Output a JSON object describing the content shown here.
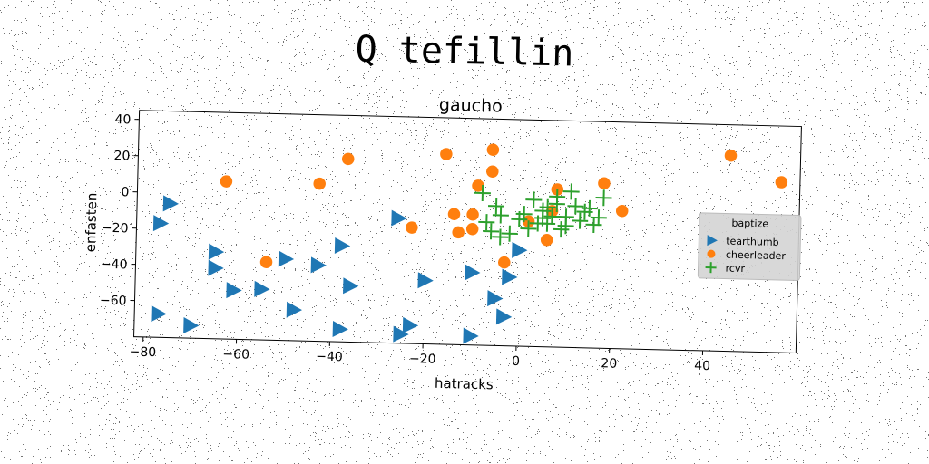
{
  "suptitle": "Q tefillin",
  "chart_data": {
    "type": "scatter",
    "title": "gaucho",
    "xlabel": "hatracks",
    "ylabel": "enfasten",
    "xlim": [
      -82,
      60
    ],
    "ylim": [
      -80,
      45
    ],
    "xticks": [
      -80,
      -60,
      -40,
      -20,
      0,
      20,
      40
    ],
    "yticks": [
      -60,
      -40,
      -20,
      0,
      20,
      40
    ],
    "grid": false,
    "legend": {
      "title": "baptize",
      "placement": "center-right"
    },
    "series": [
      {
        "name": "tearthumb",
        "marker": "triangle-right",
        "color": "#1f77b4",
        "points": [
          [
            -75,
            -6
          ],
          [
            -77,
            -17
          ],
          [
            -65,
            -32
          ],
          [
            -65,
            -41
          ],
          [
            -61,
            -53
          ],
          [
            -55,
            -52
          ],
          [
            -50,
            -35
          ],
          [
            -43,
            -38
          ],
          [
            -38,
            -27
          ],
          [
            -48,
            -63
          ],
          [
            -70,
            -73
          ],
          [
            -77,
            -67
          ],
          [
            -36,
            -49
          ],
          [
            -38,
            -73
          ],
          [
            -25,
            -75
          ],
          [
            -26,
            -11
          ],
          [
            -20,
            -45
          ],
          [
            -23,
            -70
          ],
          [
            -10,
            -40
          ],
          [
            -5,
            -54
          ],
          [
            -3,
            -64
          ],
          [
            -2,
            -42
          ],
          [
            0,
            -27
          ],
          [
            -10,
            -75
          ]
        ]
      },
      {
        "name": "cheerleader",
        "marker": "circle",
        "color": "#ff7f0e",
        "points": [
          [
            -63,
            7
          ],
          [
            -43,
            7
          ],
          [
            -37,
            21
          ],
          [
            -16,
            25
          ],
          [
            -6,
            28
          ],
          [
            -6,
            16
          ],
          [
            -9,
            8
          ],
          [
            -14,
            -8
          ],
          [
            -13,
            -18
          ],
          [
            -10,
            -16
          ],
          [
            -10,
            -8
          ],
          [
            -23,
            -16
          ],
          [
            -54,
            -37
          ],
          [
            2,
            -11
          ],
          [
            7,
            -5
          ],
          [
            6,
            -21
          ],
          [
            8,
            7
          ],
          [
            18,
            11
          ],
          [
            22,
            -4
          ],
          [
            45,
            28
          ],
          [
            56,
            14
          ],
          [
            -3,
            -34
          ]
        ]
      },
      {
        "name": "rcvr",
        "marker": "plus",
        "color": "#2ca02c",
        "points": [
          [
            -8,
            4
          ],
          [
            -5,
            -3
          ],
          [
            -7,
            -12
          ],
          [
            -6,
            -17
          ],
          [
            -4,
            -20
          ],
          [
            -2,
            -18
          ],
          [
            0,
            -10
          ],
          [
            1,
            -7
          ],
          [
            2,
            -15
          ],
          [
            4,
            -12
          ],
          [
            3,
            1
          ],
          [
            5,
            -5
          ],
          [
            6,
            -3
          ],
          [
            7,
            -8
          ],
          [
            8,
            3
          ],
          [
            6,
            -12
          ],
          [
            9,
            -15
          ],
          [
            10,
            -8
          ],
          [
            11,
            6
          ],
          [
            12,
            -2
          ],
          [
            14,
            -5
          ],
          [
            16,
            -12
          ],
          [
            17,
            -8
          ],
          [
            18,
            3
          ],
          [
            13,
            -10
          ],
          [
            15,
            -3
          ],
          [
            -4,
            -8
          ],
          [
            5,
            -9
          ],
          [
            8,
            -1
          ],
          [
            10,
            -13
          ]
        ]
      }
    ]
  }
}
